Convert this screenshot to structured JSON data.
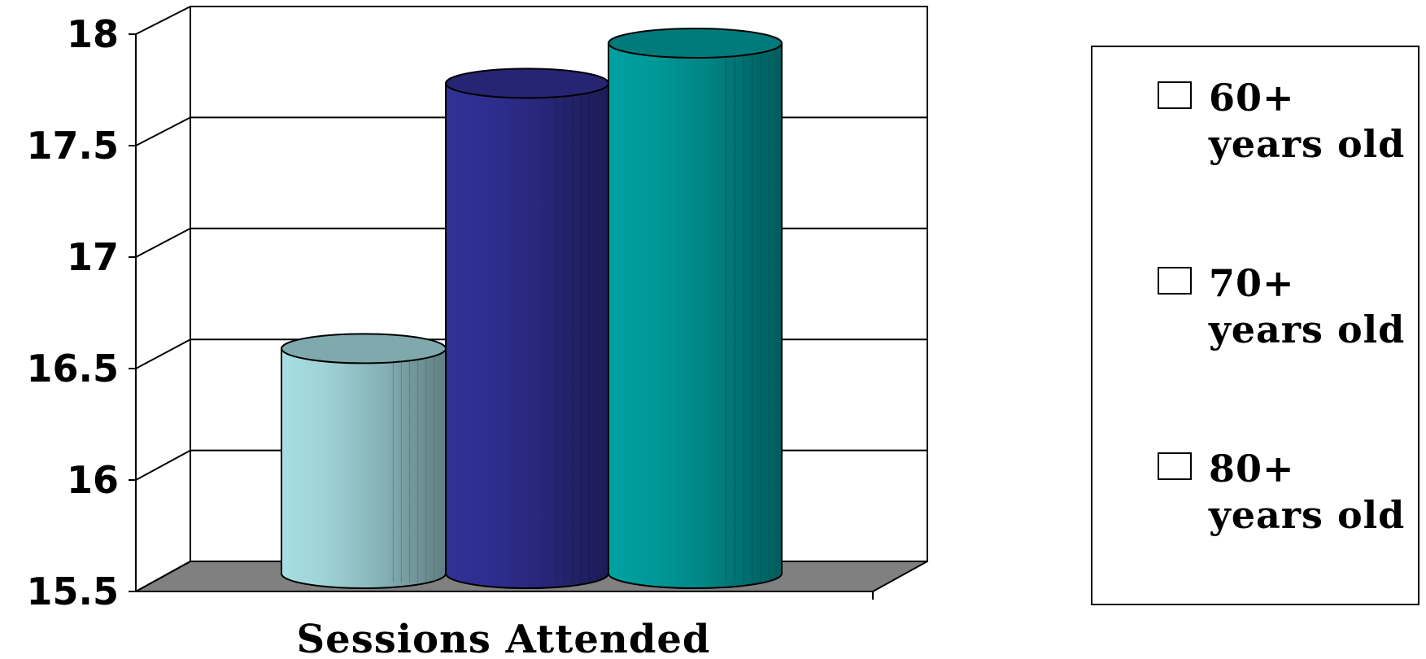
{
  "chart_data": {
    "type": "bar",
    "categories": [
      "Sessions Attended"
    ],
    "series": [
      {
        "name": "60+ years old",
        "values": [
          16.67
        ],
        "color": "#9fd3d8"
      },
      {
        "name": "70+ years old",
        "values": [
          17.86
        ],
        "color": "#2e2e90"
      },
      {
        "name": "80+ years old",
        "values": [
          18.04
        ],
        "color": "#009999"
      }
    ],
    "y_ticks": [
      "15.5",
      "16",
      "16.5",
      "17",
      "17.5",
      "18"
    ],
    "ylim": [
      15.5,
      18
    ],
    "grid": true,
    "legend_position": "right",
    "style": "3d-cylinder"
  }
}
